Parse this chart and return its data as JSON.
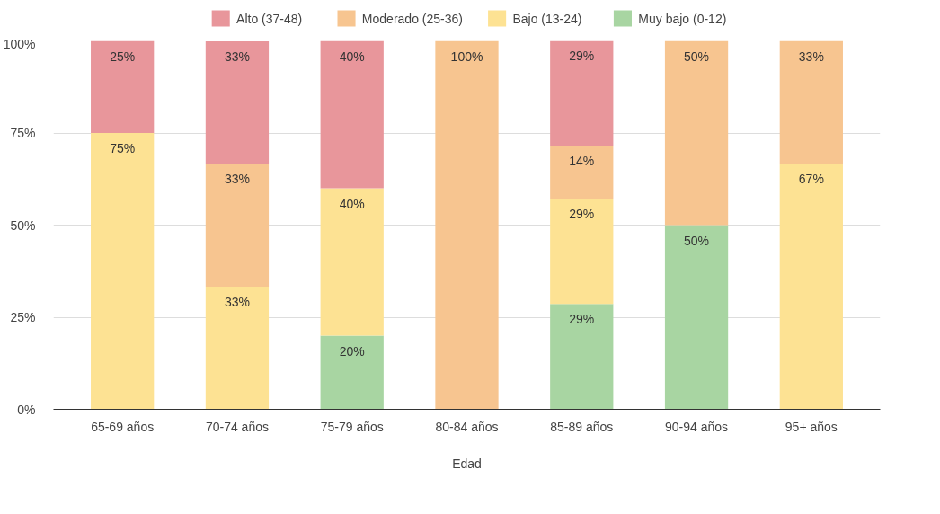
{
  "chart_data": {
    "type": "bar",
    "stacked": true,
    "xlabel": "Edad",
    "categories": [
      "65-69 años",
      "70-74 años",
      "75-79 años",
      "80-84 años",
      "85-89 años",
      "90-94 años",
      "95+ años"
    ],
    "series": [
      {
        "name": "Muy bajo (0-12)",
        "color": "#a8d5a2",
        "values": [
          null,
          null,
          20,
          null,
          28.6,
          50,
          null
        ],
        "value_labels": [
          null,
          null,
          "20%",
          null,
          "29%",
          "50%",
          null
        ]
      },
      {
        "name": "Bajo (13-24)",
        "color": "#fde293",
        "values": [
          75,
          33.3,
          40,
          null,
          28.6,
          null,
          66.7
        ],
        "value_labels": [
          "75%",
          "33%",
          "40%",
          null,
          "29%",
          null,
          "67%"
        ]
      },
      {
        "name": "Moderado (25-36)",
        "color": "#f7c590",
        "values": [
          null,
          33.3,
          null,
          100,
          14.3,
          50,
          33.3
        ],
        "value_labels": [
          null,
          "33%",
          null,
          "100%",
          "14%",
          "50%",
          "33%"
        ]
      },
      {
        "name": "Alto (37-48)",
        "color": "#e8969b",
        "values": [
          25,
          33.3,
          40,
          null,
          28.6,
          null,
          null
        ],
        "value_labels": [
          "25%",
          "33%",
          "40%",
          null,
          "29%",
          null,
          null
        ]
      }
    ],
    "ylim": [
      0,
      100
    ],
    "yticks": [
      {
        "value": 0,
        "label": "0%"
      },
      {
        "value": 25,
        "label": "25%"
      },
      {
        "value": 50,
        "label": "50%"
      },
      {
        "value": 75,
        "label": "75%"
      },
      {
        "value": 100,
        "label": "100%"
      }
    ],
    "grid": "y",
    "legend": "top"
  }
}
